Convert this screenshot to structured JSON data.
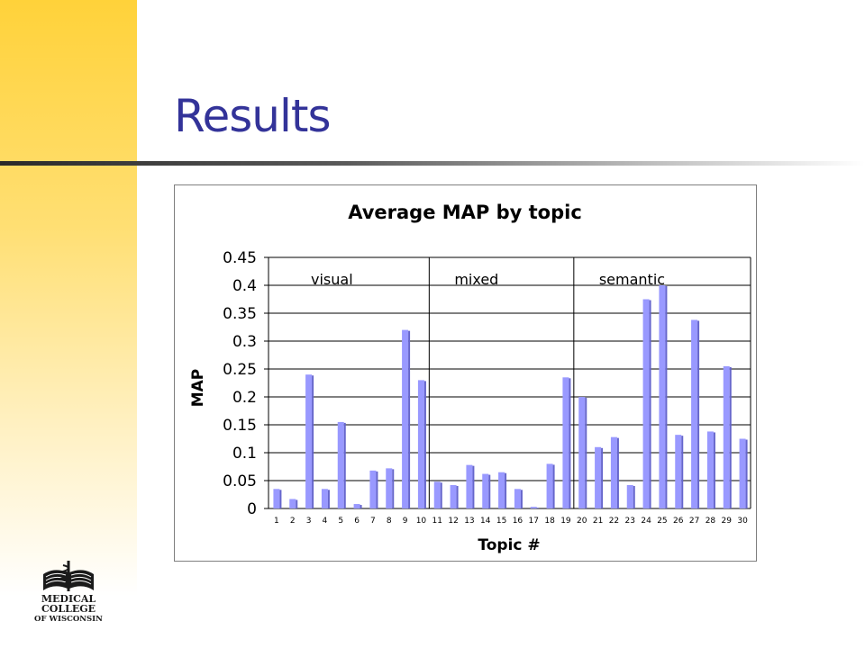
{
  "slide": {
    "title": "Results"
  },
  "logo": {
    "text_line1": "MEDICAL",
    "text_line2": "COLLEGE",
    "text_line3": "OF WISCONSIN",
    "icon": "open-book-caduceus-icon"
  },
  "colors": {
    "title": "#333399",
    "bar_front": "#9999ff",
    "bar_side": "#6666cc",
    "band_top": "#ffd23a"
  },
  "chart_data": {
    "type": "bar",
    "title": "Average MAP by topic",
    "xlabel": "Topic #",
    "ylabel": "MAP",
    "ylim": [
      0,
      0.45
    ],
    "yticks": [
      "0",
      "0.05",
      "0.1",
      "0.15",
      "0.2",
      "0.25",
      "0.3",
      "0.35",
      "0.4",
      "0.45"
    ],
    "grid": true,
    "categories": [
      "1",
      "2",
      "3",
      "4",
      "5",
      "6",
      "7",
      "8",
      "9",
      "10",
      "11",
      "12",
      "13",
      "14",
      "15",
      "16",
      "17",
      "18",
      "19",
      "20",
      "21",
      "22",
      "23",
      "24",
      "25",
      "26",
      "27",
      "28",
      "29",
      "30"
    ],
    "values": [
      0.035,
      0.017,
      0.24,
      0.035,
      0.155,
      0.008,
      0.068,
      0.072,
      0.32,
      0.23,
      0.048,
      0.042,
      0.078,
      0.062,
      0.065,
      0.035,
      0.003,
      0.08,
      0.235,
      0.2,
      0.11,
      0.128,
      0.042,
      0.375,
      0.4,
      0.132,
      0.338,
      0.138,
      0.255,
      0.125
    ],
    "groups": [
      {
        "label": "visual",
        "start": 1,
        "end": 10
      },
      {
        "label": "mixed",
        "start": 11,
        "end": 19
      },
      {
        "label": "semantic",
        "start": 20,
        "end": 30
      }
    ]
  }
}
